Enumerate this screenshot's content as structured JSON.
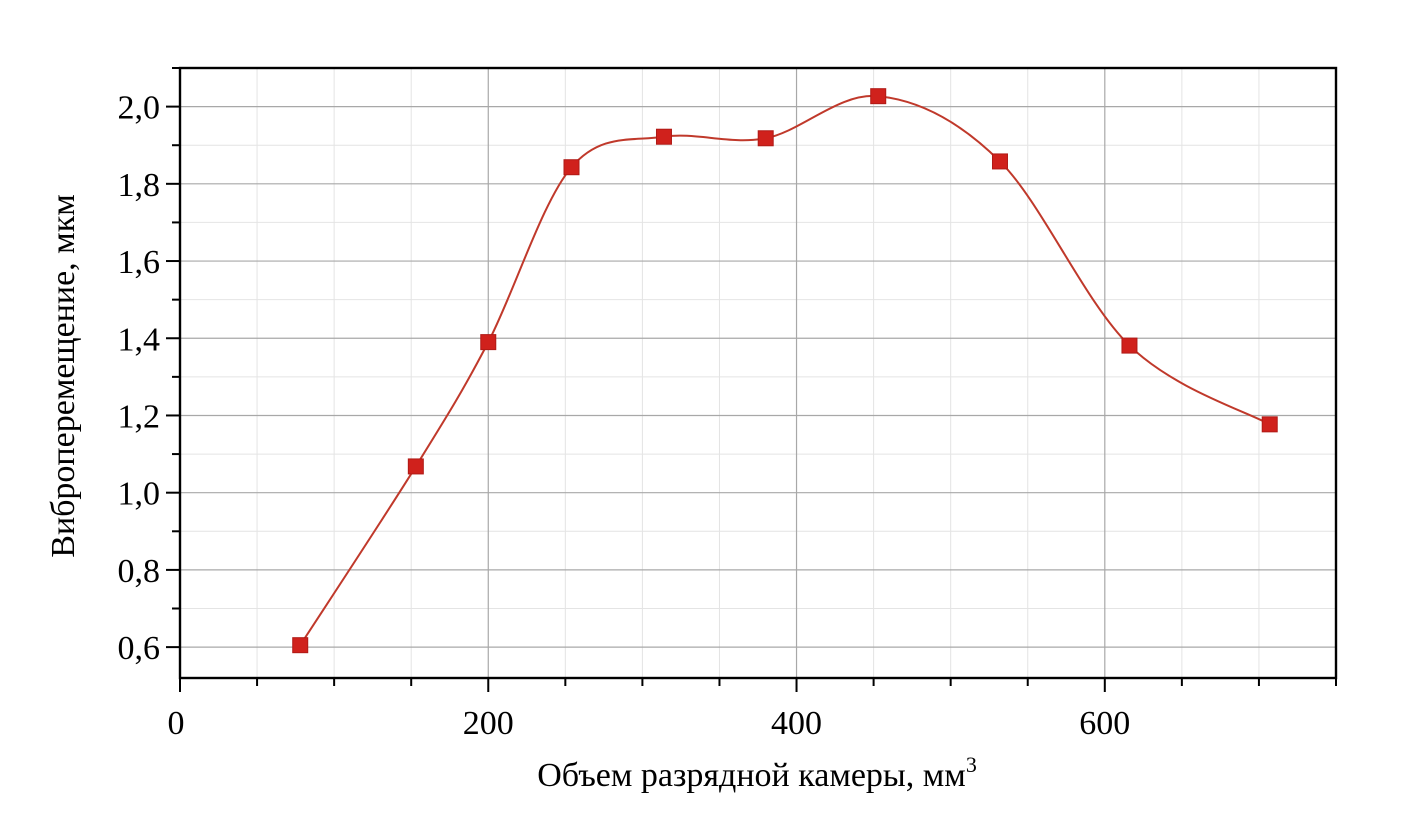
{
  "chart_data": {
    "type": "line",
    "title": "",
    "xlabel": "Объем разрядной камеры, мм",
    "xlabel_superscript": "3",
    "ylabel": "Виброперемещение, мкм",
    "xlim": [
      0,
      750
    ],
    "ylim": [
      0.52,
      2.1
    ],
    "x_ticks": [
      0,
      200,
      400,
      600
    ],
    "x_tick_labels": [
      "0",
      "200",
      "400",
      "600"
    ],
    "y_ticks": [
      0.6,
      0.8,
      1.0,
      1.2,
      1.4,
      1.6,
      1.8,
      2.0
    ],
    "y_tick_labels": [
      "0,6",
      "0,8",
      "1,0",
      "1,2",
      "1,4",
      "1,6",
      "1,8",
      "2,0"
    ],
    "grid": true,
    "legend": "none",
    "smooth": true,
    "series": [
      {
        "x": [
          78,
          153,
          200,
          254,
          314,
          380,
          453,
          532,
          616,
          707
        ],
        "y": [
          0.605,
          1.068,
          1.39,
          1.843,
          1.922,
          1.918,
          2.027,
          1.858,
          1.381,
          1.177
        ],
        "color": "#d0211c",
        "line_color": "#c0392b",
        "marker": "square"
      }
    ]
  }
}
